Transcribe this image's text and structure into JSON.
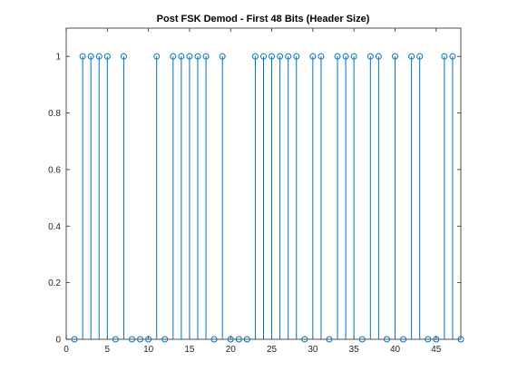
{
  "chart_data": {
    "type": "stem",
    "title": "Post FSK Demod - First 48 Bits (Header Size)",
    "xlabel": "",
    "ylabel": "",
    "xlim": [
      0,
      48
    ],
    "ylim": [
      0,
      1.1
    ],
    "x_ticks": [
      0,
      5,
      10,
      15,
      20,
      25,
      30,
      35,
      40,
      45
    ],
    "y_ticks": [
      0,
      0.2,
      0.4,
      0.6,
      0.8,
      1
    ],
    "x_tick_labels": [
      "0",
      "5",
      "10",
      "15",
      "20",
      "25",
      "30",
      "35",
      "40",
      "45"
    ],
    "y_tick_labels": [
      "0",
      "0.2",
      "0.4",
      "0.6",
      "0.8",
      "1"
    ],
    "grid": false,
    "x": [
      1,
      2,
      3,
      4,
      5,
      6,
      7,
      8,
      9,
      10,
      11,
      12,
      13,
      14,
      15,
      16,
      17,
      18,
      19,
      20,
      21,
      22,
      23,
      24,
      25,
      26,
      27,
      28,
      29,
      30,
      31,
      32,
      33,
      34,
      35,
      36,
      37,
      38,
      39,
      40,
      41,
      42,
      43,
      44,
      45,
      46,
      47,
      48
    ],
    "values": [
      0,
      1,
      1,
      1,
      1,
      0,
      1,
      0,
      0,
      0,
      1,
      0,
      1,
      1,
      1,
      1,
      1,
      0,
      1,
      0,
      0,
      0,
      1,
      1,
      1,
      1,
      1,
      1,
      0,
      1,
      1,
      0,
      1,
      1,
      1,
      0,
      1,
      1,
      0,
      1,
      0,
      1,
      1,
      0,
      0,
      1,
      1,
      0
    ],
    "colors": {
      "series": "#0072bd",
      "axis": "#262626",
      "background": "#ffffff"
    }
  }
}
